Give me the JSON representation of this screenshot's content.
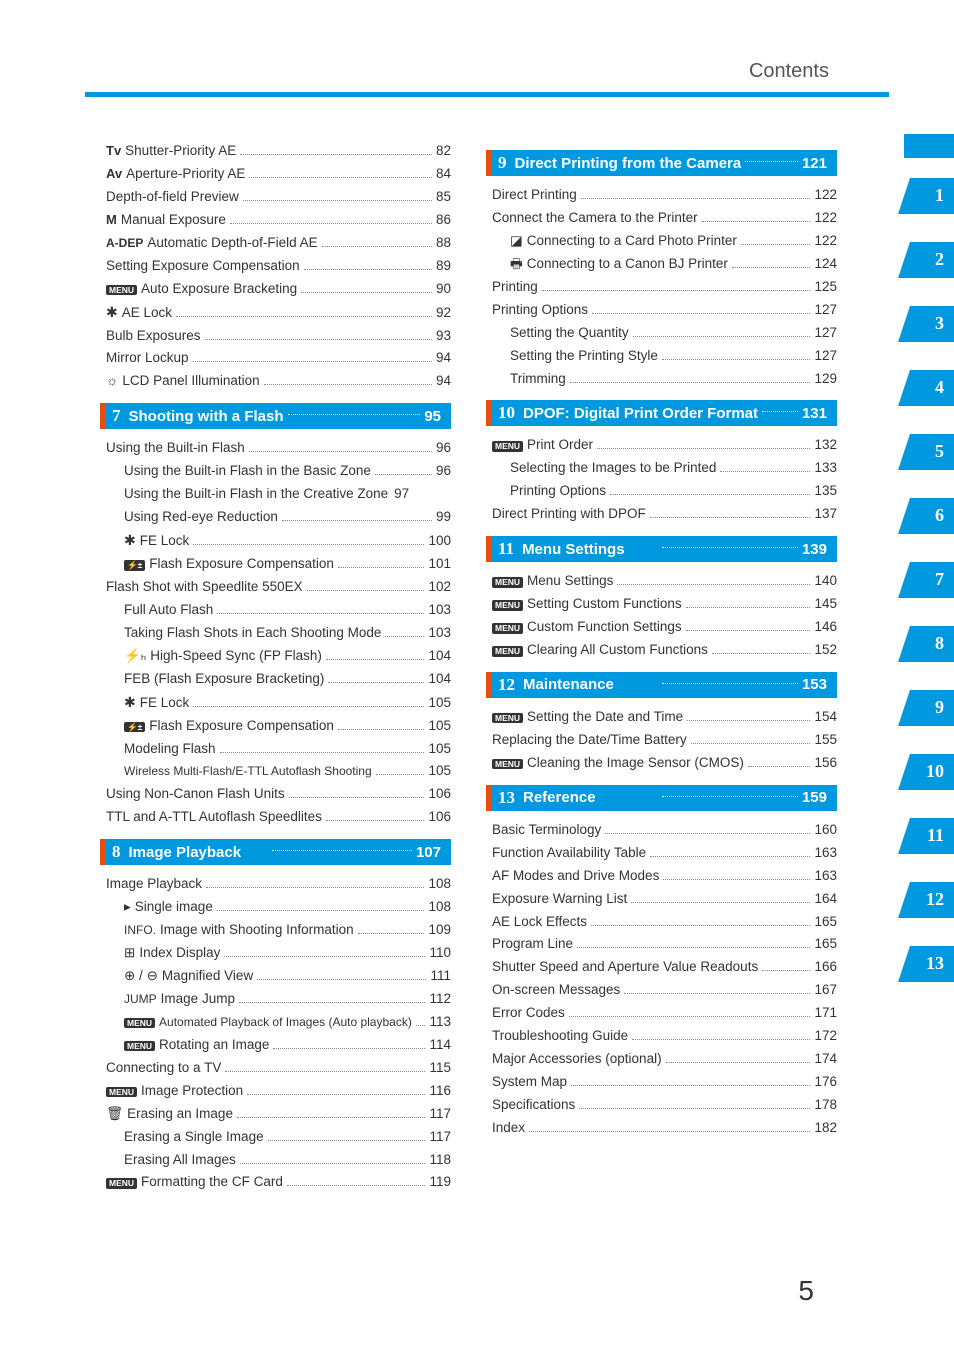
{
  "header": {
    "title": "Contents"
  },
  "page_number": "5",
  "colors": {
    "accent": "#0099e0",
    "notch": "#e84d10"
  },
  "tabs": [
    "",
    "1",
    "2",
    "3",
    "4",
    "5",
    "6",
    "7",
    "8",
    "9",
    "10",
    "11",
    "12",
    "13"
  ],
  "left": {
    "pre": [
      {
        "prefix": "Tv",
        "prefixClass": "mode-label",
        "label": " Shutter-Priority AE",
        "page": "82"
      },
      {
        "prefix": "Av",
        "prefixClass": "mode-label",
        "label": " Aperture-Priority AE",
        "page": "84"
      },
      {
        "label": "Depth-of-field Preview",
        "page": "85"
      },
      {
        "prefix": "M",
        "prefixClass": "mode-label",
        "label": " Manual Exposure",
        "page": "86"
      },
      {
        "prefix": "A-DEP",
        "prefixClass": "mode-label small",
        "label": " Automatic Depth-of-Field AE",
        "page": "88"
      },
      {
        "label": "Setting Exposure Compensation",
        "page": "89"
      },
      {
        "badge": "MENU",
        "label": " Auto Exposure Bracketing",
        "page": "90"
      },
      {
        "prefix": "✱",
        "prefixClass": "icon-star",
        "label": " AE Lock",
        "page": "92"
      },
      {
        "label": "Bulb Exposures",
        "page": "93"
      },
      {
        "label": "Mirror Lockup",
        "page": "94"
      },
      {
        "prefix": "☼",
        "label": " LCD Panel Illumination",
        "page": "94"
      }
    ],
    "s7": {
      "num": "7",
      "title": "Shooting with a Flash",
      "page": "95",
      "items": [
        {
          "label": "Using the Built-in Flash",
          "page": "96"
        },
        {
          "indent": 1,
          "label": "Using the Built-in Flash in the Basic Zone",
          "page": "96"
        },
        {
          "indent": 1,
          "label": "Using the Built-in Flash in the Creative Zone",
          "page": "97",
          "nodots": true
        },
        {
          "indent": 1,
          "label": "Using Red-eye Reduction",
          "page": "99"
        },
        {
          "indent": 1,
          "prefix": "✱",
          "prefixClass": "icon-star",
          "label": " FE Lock",
          "page": "100"
        },
        {
          "indent": 1,
          "badge": "⚡±",
          "label": " Flash Exposure Compensation",
          "page": "101"
        },
        {
          "label": "Flash Shot with Speedlite 550EX",
          "page": "102"
        },
        {
          "indent": 1,
          "label": "Full Auto Flash",
          "page": "103"
        },
        {
          "indent": 1,
          "label": "Taking Flash Shots in Each Shooting Mode",
          "page": "103"
        },
        {
          "indent": 1,
          "prefix": "⚡ₕ",
          "label": " High-Speed Sync (FP Flash)",
          "page": "104"
        },
        {
          "indent": 1,
          "label": "FEB (Flash Exposure Bracketing)",
          "page": "104"
        },
        {
          "indent": 1,
          "prefix": "✱",
          "prefixClass": "icon-star",
          "label": " FE Lock",
          "page": "105"
        },
        {
          "indent": 1,
          "badge": "⚡±",
          "label": " Flash Exposure Compensation",
          "page": "105"
        },
        {
          "indent": 1,
          "label": "Modeling Flash",
          "page": "105"
        },
        {
          "indent": 1,
          "label": "Wireless Multi-Flash/E-TTL Autoflash Shooting",
          "page": "105",
          "small": true
        },
        {
          "label": "Using Non-Canon Flash Units",
          "page": "106"
        },
        {
          "label": "TTL and A-TTL Autoflash Speedlites",
          "page": "106"
        }
      ]
    },
    "s8": {
      "num": "8",
      "title": "Image Playback",
      "page": "107",
      "items": [
        {
          "label": "Image Playback",
          "page": "108"
        },
        {
          "indent": 1,
          "prefix": "▸",
          "label": " Single image",
          "page": "108"
        },
        {
          "indent": 1,
          "prefix": "INFO.",
          "prefixClass": "small",
          "label": " Image with Shooting Information",
          "page": "109"
        },
        {
          "indent": 1,
          "prefix": "⊞",
          "label": " Index Display",
          "page": "110"
        },
        {
          "indent": 1,
          "prefix": "⊕ / ⊖",
          "label": " Magnified View",
          "page": "111"
        },
        {
          "indent": 1,
          "prefix": "JUMP",
          "prefixClass": "small",
          "label": " Image Jump",
          "page": "112"
        },
        {
          "indent": 1,
          "badge": "MENU",
          "label": " Automated Playback of Images (Auto playback)",
          "page": "113",
          "small": true
        },
        {
          "indent": 1,
          "badge": "MENU",
          "label": " Rotating an Image",
          "page": "114"
        },
        {
          "label": "Connecting to a TV",
          "page": "115"
        },
        {
          "badge": "MENU",
          "label": " Image Protection",
          "page": "116"
        },
        {
          "prefix": "🗑",
          "label": " Erasing an Image",
          "page": "117"
        },
        {
          "indent": 1,
          "label": "Erasing a Single Image",
          "page": "117"
        },
        {
          "indent": 1,
          "label": "Erasing All Images",
          "page": "118"
        },
        {
          "badge": "MENU",
          "label": " Formatting the CF Card",
          "page": "119"
        }
      ]
    }
  },
  "right": {
    "s9": {
      "num": "9",
      "title": "Direct Printing from the Camera",
      "page": "121",
      "items": [
        {
          "label": "Direct Printing",
          "page": "122"
        },
        {
          "label": "Connect the Camera to the Printer",
          "page": "122"
        },
        {
          "indent": 1,
          "prefix": "◪",
          "label": " Connecting to a Card Photo Printer",
          "page": "122"
        },
        {
          "indent": 1,
          "prefix": "🖶",
          "label": " Connecting to a Canon BJ Printer",
          "page": "124"
        },
        {
          "label": "Printing",
          "page": "125"
        },
        {
          "label": "Printing Options",
          "page": "127"
        },
        {
          "indent": 1,
          "label": "Setting the Quantity",
          "page": "127"
        },
        {
          "indent": 1,
          "label": "Setting the Printing Style",
          "page": "127"
        },
        {
          "indent": 1,
          "label": "Trimming",
          "page": "129"
        }
      ]
    },
    "s10": {
      "num": "10",
      "title": "DPOF: Digital Print Order Format",
      "page": "131",
      "items": [
        {
          "badge": "MENU",
          "label": " Print Order",
          "page": "132"
        },
        {
          "indent": 1,
          "label": "Selecting the Images to be Printed",
          "page": "133"
        },
        {
          "indent": 1,
          "label": "Printing Options",
          "page": "135"
        },
        {
          "label": "Direct Printing with DPOF",
          "page": "137"
        }
      ]
    },
    "s11": {
      "num": "11",
      "title": "Menu Settings",
      "page": "139",
      "items": [
        {
          "badge": "MENU",
          "label": " Menu Settings",
          "page": "140"
        },
        {
          "badge": "MENU",
          "label": " Setting Custom Functions",
          "page": "145"
        },
        {
          "badge": "MENU",
          "label": " Custom Function Settings",
          "page": "146"
        },
        {
          "badge": "MENU",
          "label": " Clearing All Custom Functions",
          "page": "152"
        }
      ]
    },
    "s12": {
      "num": "12",
      "title": "Maintenance",
      "page": "153",
      "items": [
        {
          "badge": "MENU",
          "label": " Setting the Date and Time",
          "page": "154"
        },
        {
          "label": "Replacing the Date/Time Battery",
          "page": "155"
        },
        {
          "badge": "MENU",
          "label": " Cleaning the Image Sensor (CMOS)",
          "page": "156"
        }
      ]
    },
    "s13": {
      "num": "13",
      "title": "Reference",
      "page": "159",
      "items": [
        {
          "label": "Basic Terminology",
          "page": "160"
        },
        {
          "label": "Function Availability Table",
          "page": "163"
        },
        {
          "label": "AF Modes and Drive Modes",
          "page": "163"
        },
        {
          "label": "Exposure Warning List",
          "page": "164"
        },
        {
          "label": "AE Lock Effects",
          "page": "165"
        },
        {
          "label": "Program Line",
          "page": "165"
        },
        {
          "label": "Shutter Speed and Aperture Value Readouts",
          "page": "166"
        },
        {
          "label": "On-screen Messages",
          "page": "167"
        },
        {
          "label": "Error Codes",
          "page": "171"
        },
        {
          "label": "Troubleshooting Guide",
          "page": "172"
        },
        {
          "label": "Major Accessories (optional)",
          "page": "174"
        },
        {
          "label": "System Map",
          "page": "176"
        },
        {
          "label": "Specifications",
          "page": "178"
        },
        {
          "label": "Index",
          "page": "182"
        }
      ]
    }
  }
}
